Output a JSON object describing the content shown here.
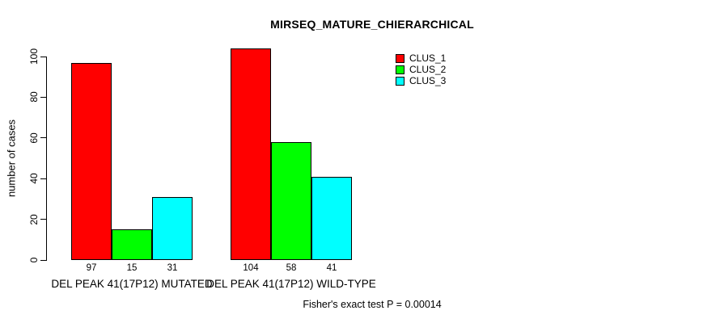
{
  "title": "MIRSEQ_MATURE_CHIERARCHICAL",
  "chart_data": {
    "type": "bar",
    "title": "MIRSEQ_MATURE_CHIERARCHICAL",
    "xlabel": "",
    "ylabel": "number of cases",
    "ylim": [
      0,
      104
    ],
    "yticks": [
      0,
      20,
      40,
      60,
      80,
      100
    ],
    "grid": false,
    "legend_position": "top-right",
    "bar_value_labels": true,
    "categories": [
      "DEL PEAK 41(17P12) MUTATED",
      "DEL PEAK 41(17P12) WILD-TYPE"
    ],
    "series": [
      {
        "name": "CLUS_1",
        "color": "#FF0000",
        "values": [
          97,
          104
        ]
      },
      {
        "name": "CLUS_2",
        "color": "#00FF00",
        "values": [
          15,
          58
        ]
      },
      {
        "name": "CLUS_3",
        "color": "#00FFFF",
        "values": [
          31,
          41
        ]
      }
    ],
    "annotation": "Fisher's exact test P = 0.00014"
  },
  "colors": {
    "background": "#FFFFFF",
    "text": "#000000",
    "axis": "#000000",
    "bar_border": "#000000"
  }
}
